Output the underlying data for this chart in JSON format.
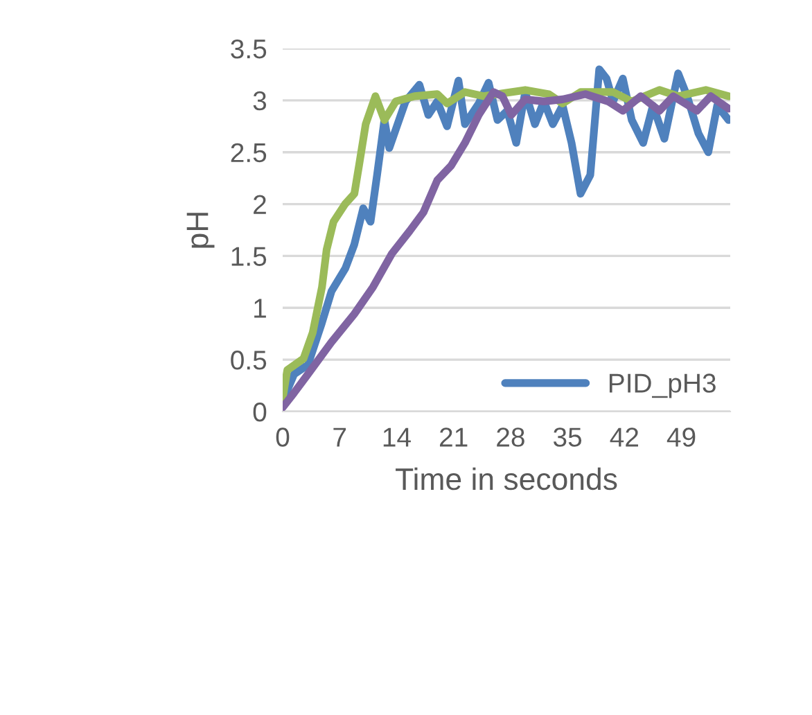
{
  "chart_data": {
    "type": "line",
    "xlabel": "Time in seconds",
    "ylabel": "pH",
    "xlim": [
      0,
      55
    ],
    "xticks": [
      0,
      7,
      14,
      21,
      28,
      35,
      42,
      49
    ],
    "ylim": [
      0,
      3.5
    ],
    "yticks": [
      0,
      0.5,
      1,
      1.5,
      2,
      2.5,
      3,
      3.5
    ],
    "grid": "y",
    "legend": "bottom right",
    "marker": "none",
    "line_style": "solid",
    "series": [
      {
        "name": "PID_pH3",
        "color": "#4f81bd",
        "x": [
          0,
          1.4,
          3.1,
          4.8,
          6.0,
          7.7,
          8.8,
          9.9,
          10.8,
          11.6,
          12.5,
          13.1,
          13.9,
          15.1,
          16.8,
          17.9,
          19.0,
          20.2,
          21.6,
          22.4,
          24.1,
          25.3,
          26.4,
          27.6,
          28.7,
          29.8,
          31.0,
          32.1,
          33.2,
          34.4,
          35.5,
          36.6,
          37.8,
          38.9,
          39.8,
          40.6,
          41.8,
          42.9,
          44.3,
          45.5,
          46.9,
          48.6,
          49.7,
          51.1,
          52.3,
          53.4,
          54.8
        ],
        "values": [
          0.1,
          0.36,
          0.45,
          0.85,
          1.16,
          1.38,
          1.61,
          1.96,
          1.83,
          2.28,
          2.81,
          2.54,
          2.72,
          2.99,
          3.15,
          2.86,
          2.99,
          2.75,
          3.19,
          2.77,
          2.97,
          3.17,
          2.81,
          2.9,
          2.59,
          3.08,
          2.77,
          2.99,
          2.77,
          2.95,
          2.59,
          2.1,
          2.28,
          3.3,
          3.21,
          2.99,
          3.21,
          2.81,
          2.59,
          2.95,
          2.63,
          3.26,
          3.04,
          2.68,
          2.5,
          2.95,
          2.81
        ]
      },
      {
        "color": "#9bbb59",
        "x": [
          0,
          0.57,
          2.56,
          3.69,
          4.83,
          5.4,
          6.25,
          7.67,
          8.81,
          9.38,
          10.2,
          11.4,
          12.5,
          13.9,
          16.2,
          19.0,
          20.2,
          22.4,
          24.7,
          29.8,
          32.7,
          34.4,
          36.6,
          40.6,
          42.9,
          46.3,
          48.6,
          52.0,
          54.8
        ],
        "values": [
          0.13,
          0.4,
          0.51,
          0.76,
          1.2,
          1.56,
          1.83,
          2.0,
          2.1,
          2.37,
          2.77,
          3.04,
          2.81,
          2.99,
          3.04,
          3.06,
          2.97,
          3.08,
          3.04,
          3.1,
          3.06,
          2.97,
          3.08,
          3.08,
          2.99,
          3.1,
          3.04,
          3.1,
          3.04
        ]
      },
      {
        "color": "#8064a2",
        "x": [
          0,
          1.4,
          3.1,
          6.0,
          8.8,
          11.1,
          13.4,
          15.6,
          17.3,
          19.0,
          20.7,
          22.4,
          24.1,
          25.9,
          27.0,
          28.1,
          29.8,
          32.1,
          34.4,
          37.2,
          40.0,
          41.8,
          44.0,
          46.3,
          48.0,
          50.9,
          52.6,
          54.8
        ],
        "values": [
          0.04,
          0.18,
          0.36,
          0.67,
          0.94,
          1.2,
          1.52,
          1.74,
          1.92,
          2.23,
          2.37,
          2.59,
          2.86,
          3.08,
          3.04,
          2.86,
          3.01,
          2.99,
          3.01,
          3.06,
          2.99,
          2.9,
          3.04,
          2.9,
          3.04,
          2.9,
          3.04,
          2.92
        ]
      }
    ]
  }
}
